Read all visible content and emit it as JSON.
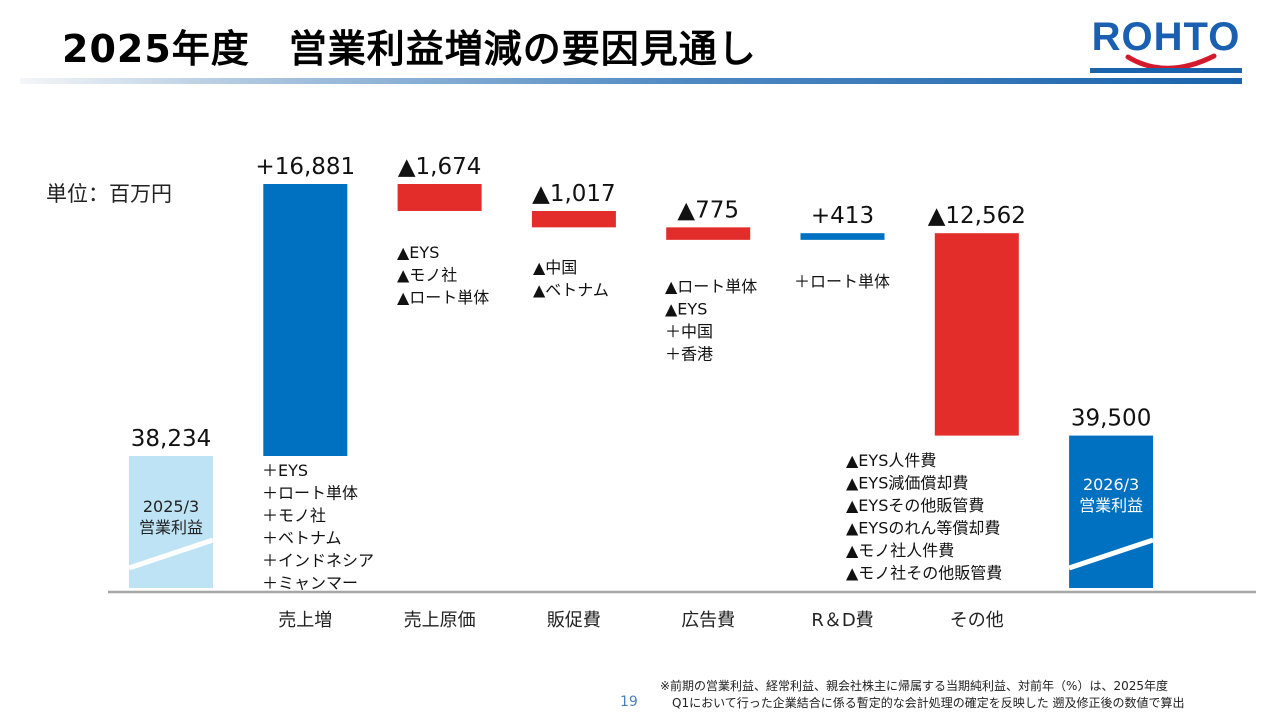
{
  "header": {
    "title": "2025年度　営業利益増減の要因見通し",
    "logo_text": "ROHTO"
  },
  "unit_label": "単位：百万円",
  "chart_data": {
    "type": "waterfall",
    "title": "2025年度　営業利益増減の要因見通し",
    "unit": "百万円",
    "categories": [
      "2025/3 営業利益",
      "売上増",
      "売上原価",
      "販促費",
      "広告費",
      "R&D費",
      "その他",
      "2026/3 営業利益"
    ],
    "bars": [
      {
        "category": "",
        "kind": "total",
        "value": 38234,
        "label": "38,234",
        "inner_label": [
          "2025/3",
          "営業利益"
        ],
        "color": "#bde3f4",
        "notes": []
      },
      {
        "category": "売上増",
        "kind": "increase",
        "value": 16881,
        "label": "+16,881",
        "color": "#0070c0",
        "notes": [
          "＋EYS",
          "＋ロート単体",
          "＋モノ社",
          "＋ベトナム",
          "＋インドネシア",
          "＋ミャンマー"
        ]
      },
      {
        "category": "売上原価",
        "kind": "decrease",
        "value": -1674,
        "label": "▲1,674",
        "color": "#e32d2a",
        "notes": [
          "▲EYS",
          "▲モノ社",
          "▲ロート単体"
        ]
      },
      {
        "category": "販促費",
        "kind": "decrease",
        "value": -1017,
        "label": "▲1,017",
        "color": "#e32d2a",
        "notes": [
          "▲中国",
          "▲ベトナム"
        ]
      },
      {
        "category": "広告費",
        "kind": "decrease",
        "value": -775,
        "label": "▲775",
        "color": "#e32d2a",
        "notes": [
          "▲ロート単体",
          "▲EYS",
          "＋中国",
          "＋香港"
        ]
      },
      {
        "category": "R＆D費",
        "kind": "increase",
        "value": 413,
        "label": "+413",
        "color": "#0070c0",
        "notes": [
          "＋ロート単体"
        ]
      },
      {
        "category": "その他",
        "kind": "decrease",
        "value": -12562,
        "label": "▲12,562",
        "color": "#e32d2a",
        "notes": [
          "▲EYS人件費",
          "▲EYS減価償却費",
          "▲EYSその他販管費",
          "▲EYSのれん等償却費",
          "▲モノ社人件費",
          "▲モノ社その他販管費"
        ]
      },
      {
        "category": "",
        "kind": "total",
        "value": 39500,
        "label": "39,500",
        "inner_label": [
          "2026/3",
          "営業利益"
        ],
        "color": "#0070c0",
        "notes": []
      }
    ],
    "axis_break": true,
    "grid": false,
    "legend": "none"
  },
  "footnote": {
    "lines": [
      "※前期の営業利益、経常利益、親会社株主に帰属する当期純利益、対前年（%）は、2025年度",
      "　Q1において行った企業結合に係る暫定的な会計処理の確定を反映した 遡及修正後の数値で算出"
    ]
  },
  "page_number": "19"
}
